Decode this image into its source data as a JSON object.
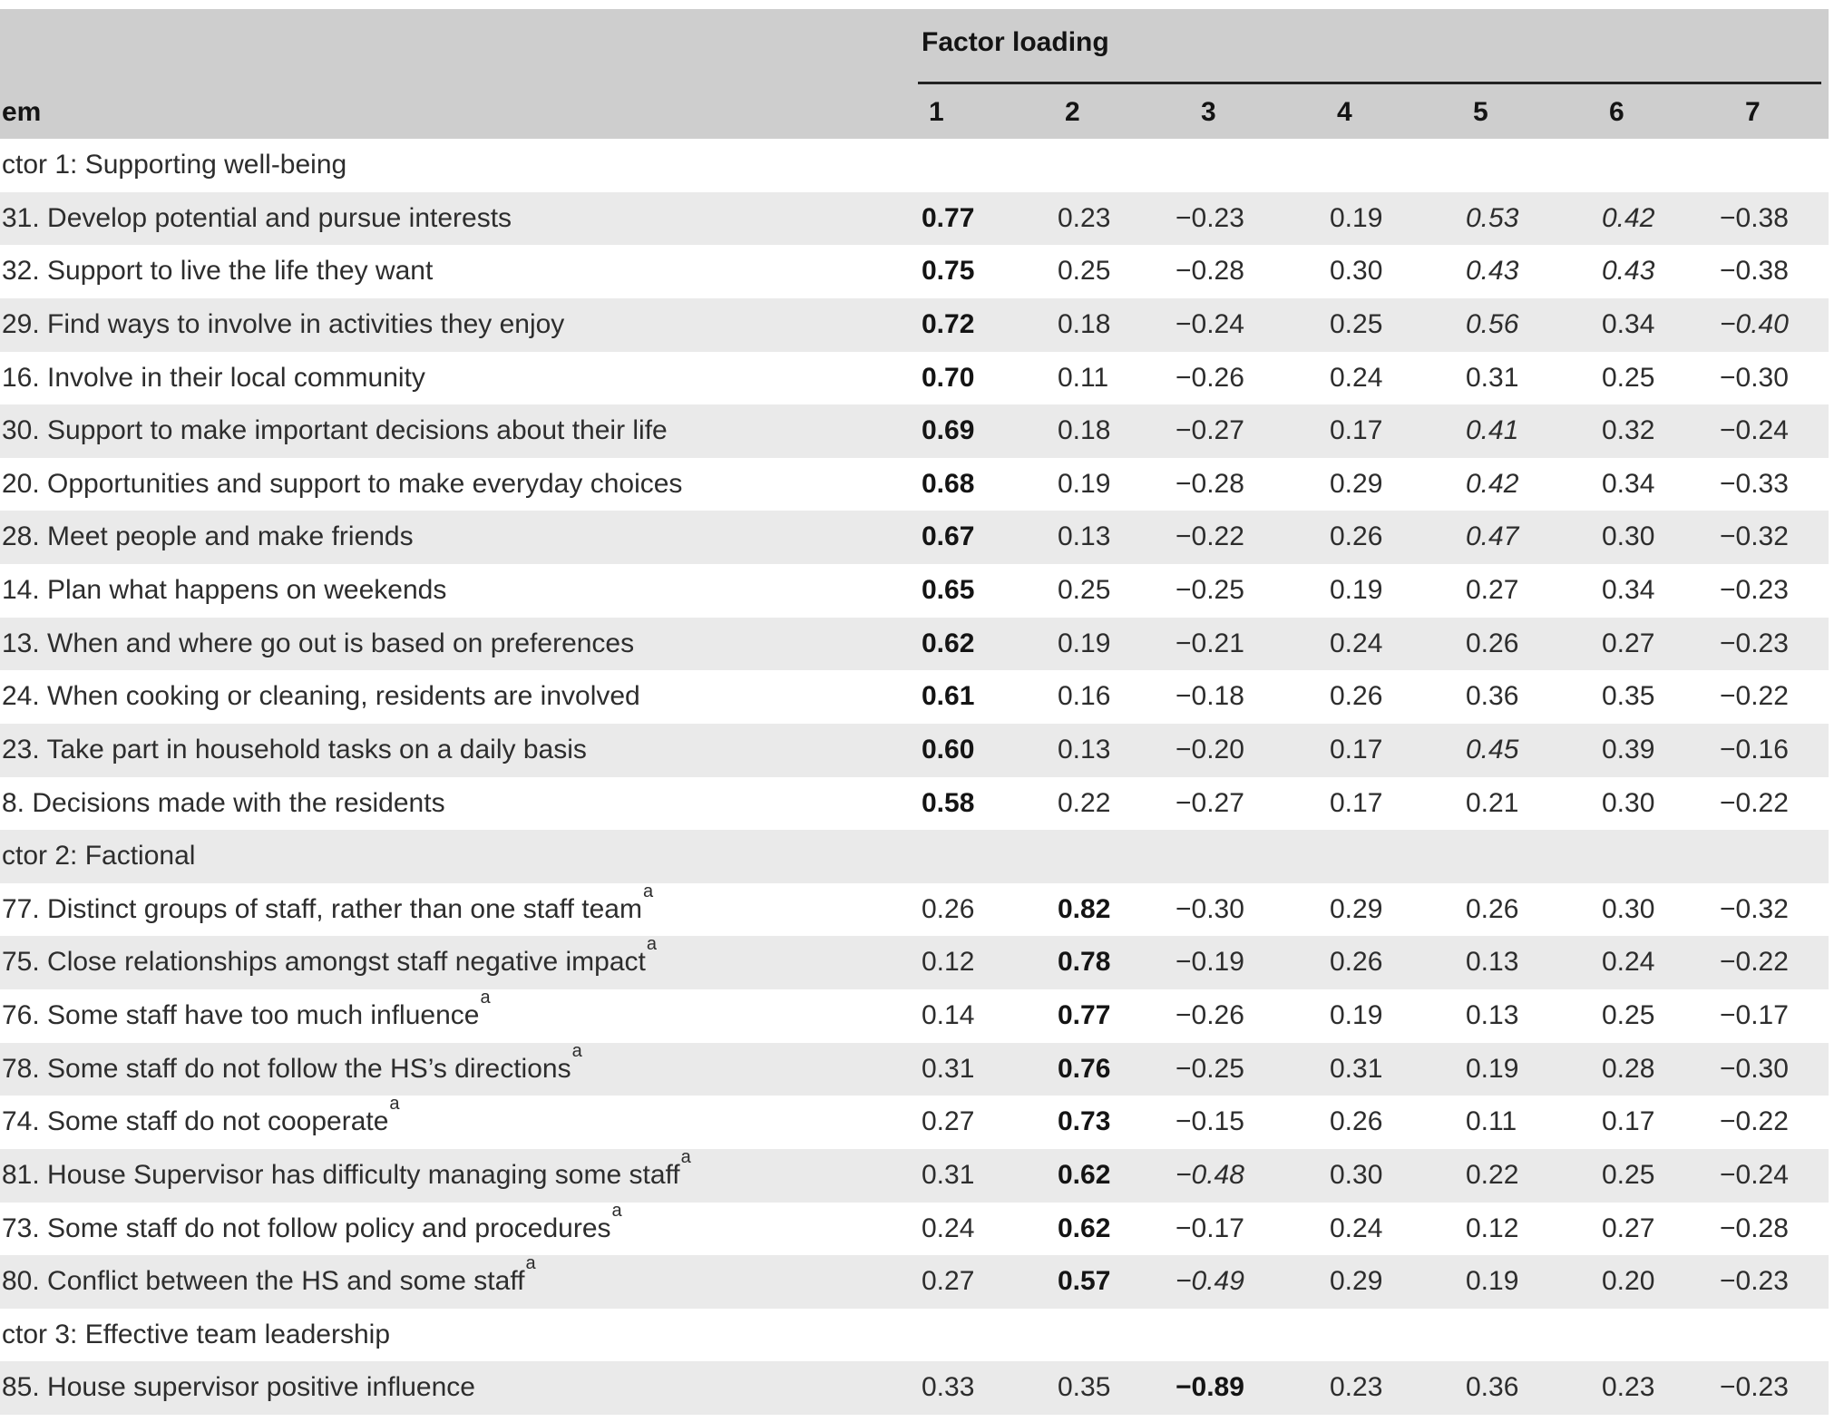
{
  "colors": {
    "header_bg": "#cecece",
    "stripe_bg": "#eaeaea",
    "text": "#2d2d2d",
    "bold_text": "#141414",
    "rule": "#222222"
  },
  "table": {
    "item_column_header": "em",
    "loading_group_header": "Factor loading",
    "factor_columns": [
      "1",
      "2",
      "3",
      "4",
      "5",
      "6",
      "7"
    ],
    "rows": [
      {
        "section": true,
        "label": "ctor 1: Supporting well-being"
      },
      {
        "label": "31. Develop potential and pursue interests",
        "vals": [
          "0.77",
          "0.23",
          "−0.23",
          "0.19",
          "0.53",
          "0.42",
          "−0.38"
        ],
        "fmt": [
          "b",
          "",
          "",
          "",
          "i",
          "i",
          ""
        ]
      },
      {
        "label": "32. Support to live the life they want",
        "vals": [
          "0.75",
          "0.25",
          "−0.28",
          "0.30",
          "0.43",
          "0.43",
          "−0.38"
        ],
        "fmt": [
          "b",
          "",
          "",
          "",
          "i",
          "i",
          ""
        ]
      },
      {
        "label": "29. Find ways to involve in activities they enjoy",
        "vals": [
          "0.72",
          "0.18",
          "−0.24",
          "0.25",
          "0.56",
          "0.34",
          "−0.40"
        ],
        "fmt": [
          "b",
          "",
          "",
          "",
          "i",
          "",
          "i"
        ]
      },
      {
        "label": "16. Involve in their local community",
        "vals": [
          "0.70",
          "0.11",
          "−0.26",
          "0.24",
          "0.31",
          "0.25",
          "−0.30"
        ],
        "fmt": [
          "b",
          "",
          "",
          "",
          "",
          "",
          ""
        ]
      },
      {
        "label": "30. Support to make important decisions about their life",
        "vals": [
          "0.69",
          "0.18",
          "−0.27",
          "0.17",
          "0.41",
          "0.32",
          "−0.24"
        ],
        "fmt": [
          "b",
          "",
          "",
          "",
          "i",
          "",
          ""
        ]
      },
      {
        "label": "20. Opportunities and support to make everyday choices",
        "vals": [
          "0.68",
          "0.19",
          "−0.28",
          "0.29",
          "0.42",
          "0.34",
          "−0.33"
        ],
        "fmt": [
          "b",
          "",
          "",
          "",
          "i",
          "",
          ""
        ]
      },
      {
        "label": "28. Meet people and make friends",
        "vals": [
          "0.67",
          "0.13",
          "−0.22",
          "0.26",
          "0.47",
          "0.30",
          "−0.32"
        ],
        "fmt": [
          "b",
          "",
          "",
          "",
          "i",
          "",
          ""
        ]
      },
      {
        "label": "14. Plan what happens on weekends",
        "vals": [
          "0.65",
          "0.25",
          "−0.25",
          "0.19",
          "0.27",
          "0.34",
          "−0.23"
        ],
        "fmt": [
          "b",
          "",
          "",
          "",
          "",
          "",
          ""
        ]
      },
      {
        "label": "13. When and where go out is based on preferences",
        "vals": [
          "0.62",
          "0.19",
          "−0.21",
          "0.24",
          "0.26",
          "0.27",
          "−0.23"
        ],
        "fmt": [
          "b",
          "",
          "",
          "",
          "",
          "",
          ""
        ]
      },
      {
        "label": "24. When cooking or cleaning, residents are involved",
        "vals": [
          "0.61",
          "0.16",
          "−0.18",
          "0.26",
          "0.36",
          "0.35",
          "−0.22"
        ],
        "fmt": [
          "b",
          "",
          "",
          "",
          "",
          "",
          ""
        ]
      },
      {
        "label": "23. Take part in household tasks on a daily basis",
        "vals": [
          "0.60",
          "0.13",
          "−0.20",
          "0.17",
          "0.45",
          "0.39",
          "−0.16"
        ],
        "fmt": [
          "b",
          "",
          "",
          "",
          "i",
          "",
          ""
        ]
      },
      {
        "label": "8. Decisions made with the residents",
        "vals": [
          "0.58",
          "0.22",
          "−0.27",
          "0.17",
          "0.21",
          "0.30",
          "−0.22"
        ],
        "fmt": [
          "b",
          "",
          "",
          "",
          "",
          "",
          ""
        ]
      },
      {
        "section": true,
        "label": "ctor 2: Factional"
      },
      {
        "label": "77. Distinct groups of staff, rather than one staff team",
        "sup": "a",
        "vals": [
          "0.26",
          "0.82",
          "−0.30",
          "0.29",
          "0.26",
          "0.30",
          "−0.32"
        ],
        "fmt": [
          "",
          "b",
          "",
          "",
          "",
          "",
          ""
        ]
      },
      {
        "label": "75. Close relationships amongst staff negative impact",
        "sup": "a",
        "vals": [
          "0.12",
          "0.78",
          "−0.19",
          "0.26",
          "0.13",
          "0.24",
          "−0.22"
        ],
        "fmt": [
          "",
          "b",
          "",
          "",
          "",
          "",
          ""
        ]
      },
      {
        "label": "76. Some staff have too much influence",
        "sup": "a",
        "vals": [
          "0.14",
          "0.77",
          "−0.26",
          "0.19",
          "0.13",
          "0.25",
          "−0.17"
        ],
        "fmt": [
          "",
          "b",
          "",
          "",
          "",
          "",
          ""
        ]
      },
      {
        "label": "78. Some staff do not follow the HS’s directions",
        "sup": "a",
        "vals": [
          "0.31",
          "0.76",
          "−0.25",
          "0.31",
          "0.19",
          "0.28",
          "−0.30"
        ],
        "fmt": [
          "",
          "b",
          "",
          "",
          "",
          "",
          ""
        ]
      },
      {
        "label": "74. Some staff do not cooperate",
        "sup": "a",
        "vals": [
          "0.27",
          "0.73",
          "−0.15",
          "0.26",
          "0.11",
          "0.17",
          "−0.22"
        ],
        "fmt": [
          "",
          "b",
          "",
          "",
          "",
          "",
          ""
        ]
      },
      {
        "label": "81. House Supervisor has difficulty managing some staff",
        "sup": "a",
        "vals": [
          "0.31",
          "0.62",
          "−0.48",
          "0.30",
          "0.22",
          "0.25",
          "−0.24"
        ],
        "fmt": [
          "",
          "b",
          "i",
          "",
          "",
          "",
          ""
        ]
      },
      {
        "label": "73. Some staff do not follow policy and procedures",
        "sup": "a",
        "vals": [
          "0.24",
          "0.62",
          "−0.17",
          "0.24",
          "0.12",
          "0.27",
          "−0.28"
        ],
        "fmt": [
          "",
          "b",
          "",
          "",
          "",
          "",
          ""
        ]
      },
      {
        "label": "80. Conflict between the HS and some staff",
        "sup": "a",
        "vals": [
          "0.27",
          "0.57",
          "−0.49",
          "0.29",
          "0.19",
          "0.20",
          "−0.23"
        ],
        "fmt": [
          "",
          "b",
          "i",
          "",
          "",
          "",
          ""
        ]
      },
      {
        "section": true,
        "label": "ctor 3: Effective team leadership"
      },
      {
        "label": "85. House supervisor positive influence",
        "vals": [
          "0.33",
          "0.35",
          "−0.89",
          "0.23",
          "0.36",
          "0.23",
          "−0.23"
        ],
        "fmt": [
          "",
          "",
          "b",
          "",
          "",
          "",
          ""
        ]
      }
    ]
  }
}
